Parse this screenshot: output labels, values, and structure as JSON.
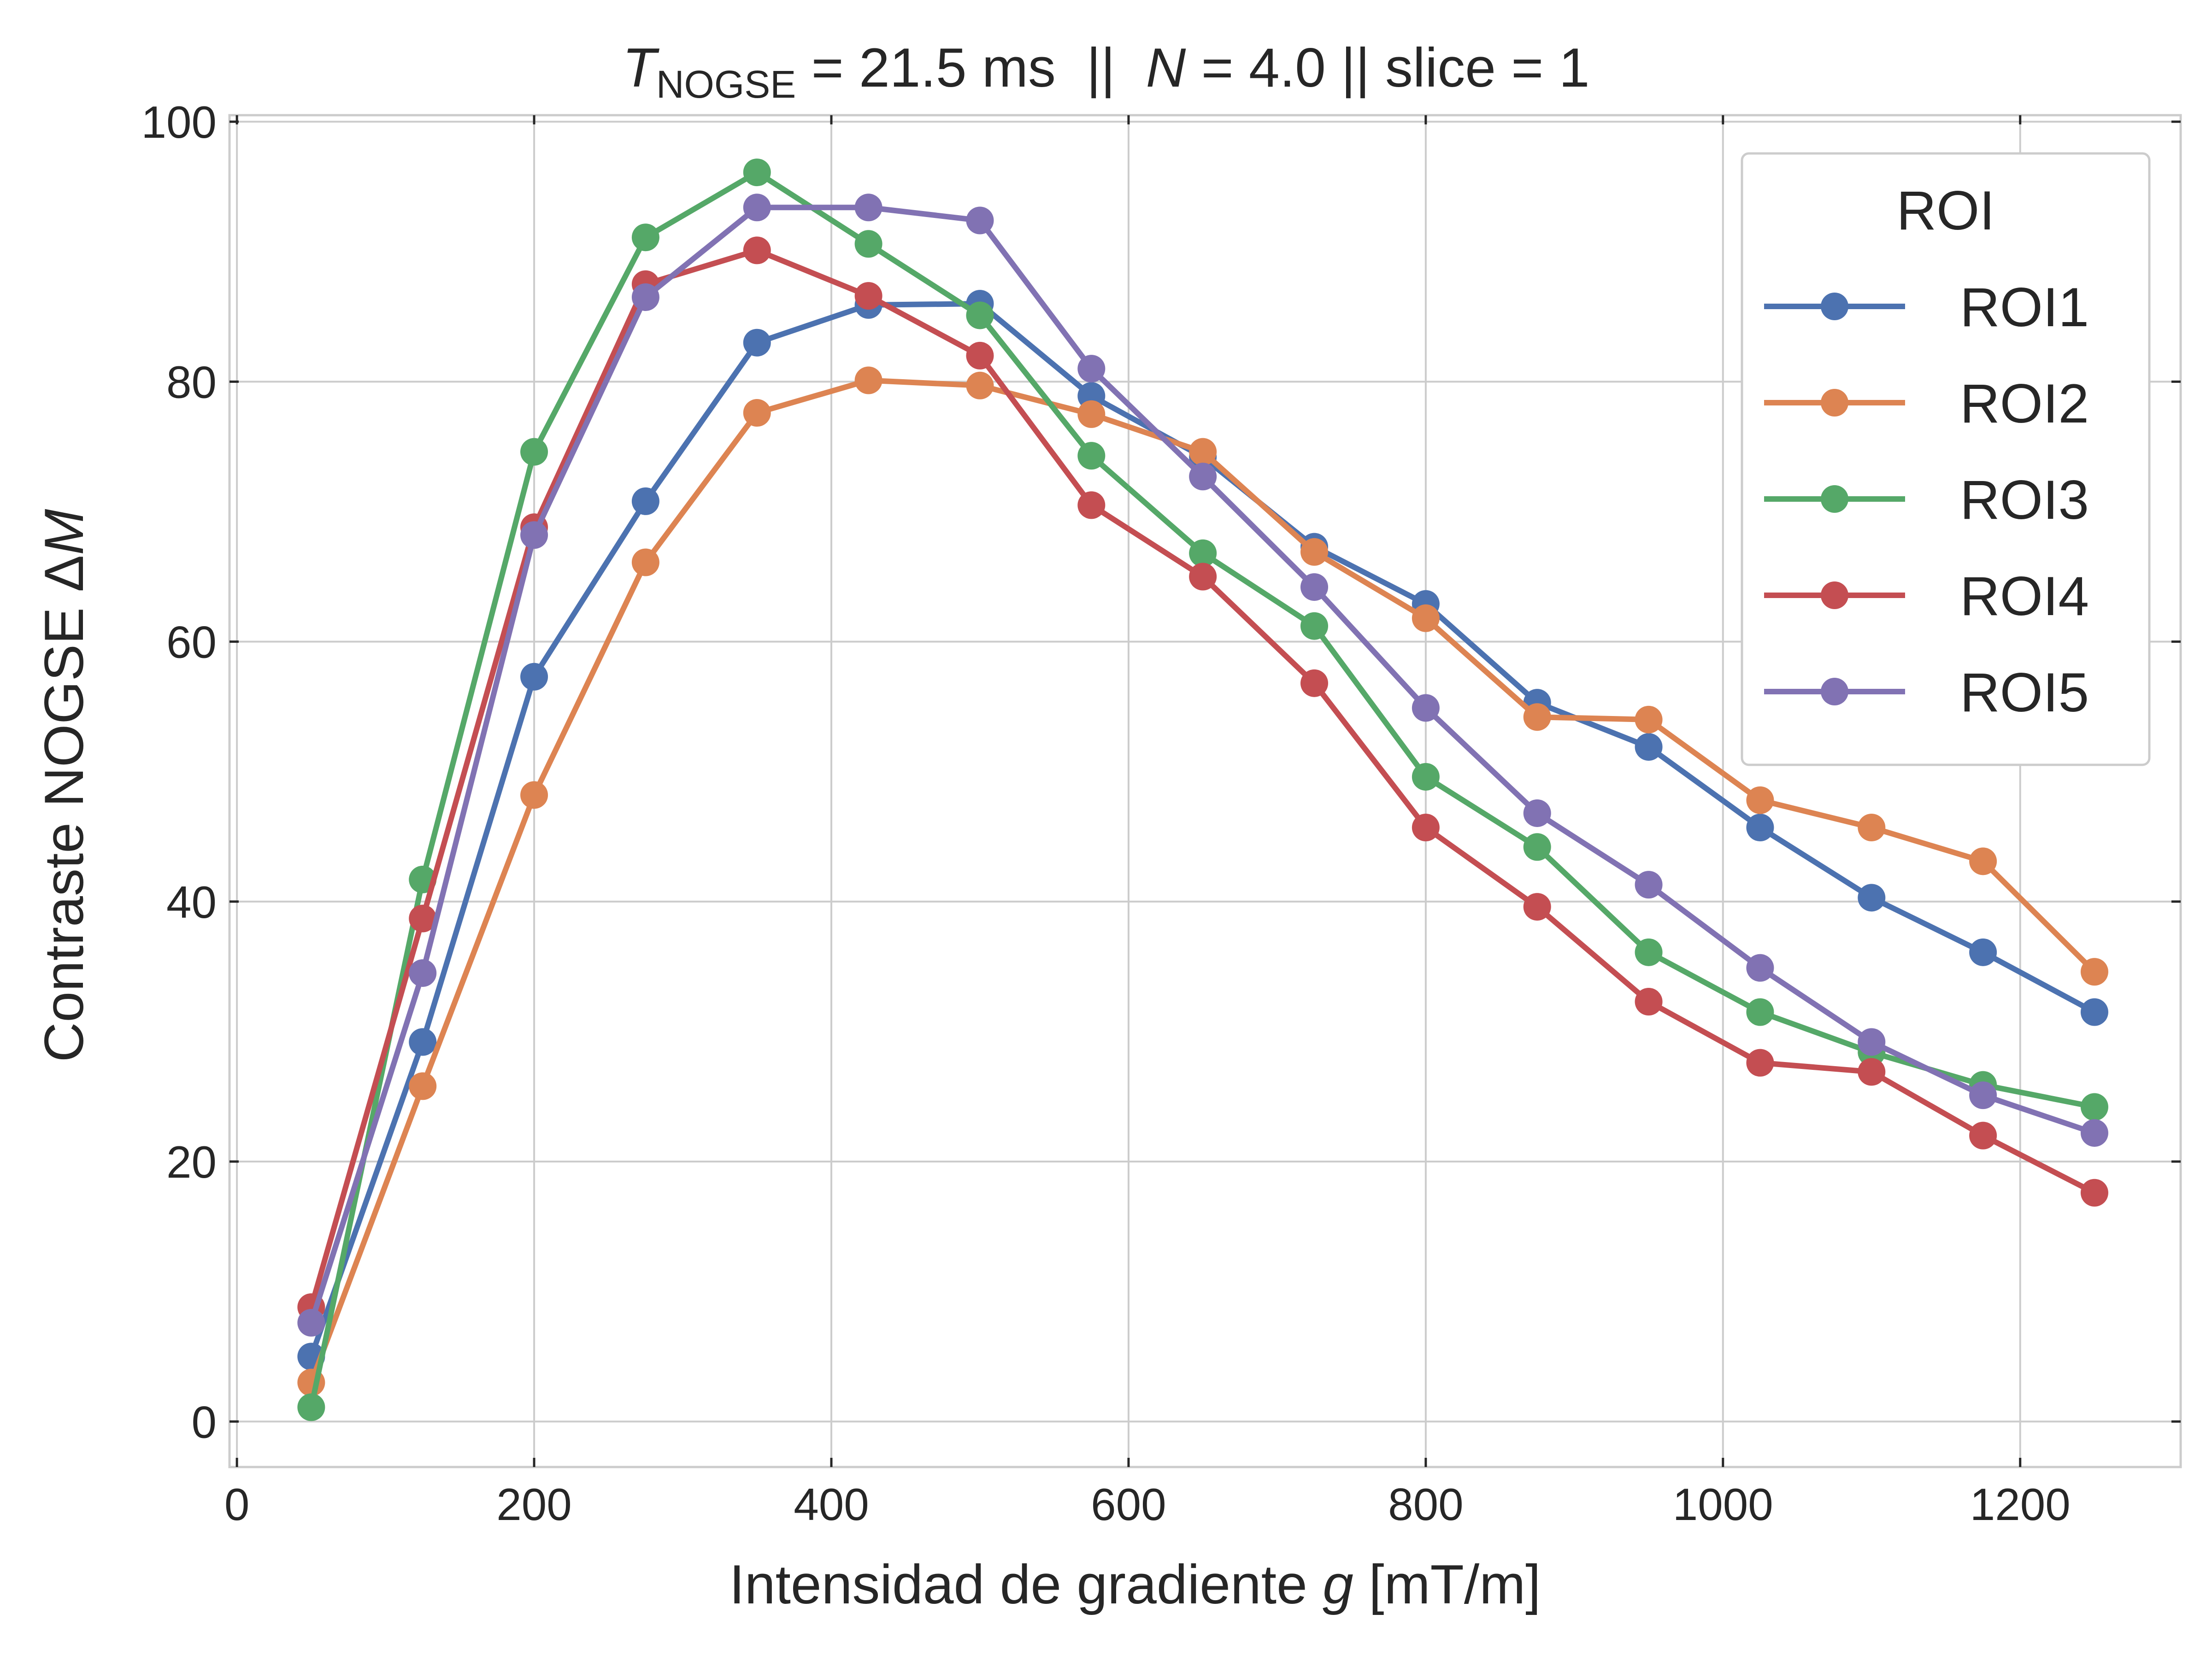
{
  "chart_data": {
    "type": "line",
    "title_parts": {
      "var_T": "T",
      "subscript": "NOGSE",
      "eq1": " = 21.5 ms  ||  ",
      "var_N": "N",
      "eq2": " = 4.0 || slice = 1"
    },
    "xlabel_parts": {
      "prefix": "Intensidad de gradiente ",
      "var": "g",
      "suffix": " [mT/m]"
    },
    "ylabel_parts": {
      "prefix": "Contraste NOGSE Δ",
      "var": "M"
    },
    "xlim": [
      -5,
      1308
    ],
    "ylim": [
      -3.5,
      100.5
    ],
    "xticks": [
      0,
      200,
      400,
      600,
      800,
      1000,
      1200
    ],
    "yticks": [
      0,
      20,
      40,
      60,
      80,
      100
    ],
    "grid": true,
    "legend": {
      "title": "ROI",
      "position": "top-right"
    },
    "x": [
      50,
      125,
      200,
      275,
      350,
      425,
      500,
      575,
      650,
      725,
      800,
      875,
      950,
      1025,
      1100,
      1175,
      1250
    ],
    "series": [
      {
        "name": "ROI1",
        "color": "#4c72b0",
        "values": [
          5.0,
          29.2,
          57.3,
          70.8,
          83.0,
          85.9,
          86.0,
          78.9,
          74.2,
          67.3,
          62.9,
          55.3,
          51.9,
          45.7,
          40.3,
          36.1,
          31.5
        ]
      },
      {
        "name": "ROI2",
        "color": "#dd8452",
        "values": [
          3.0,
          25.8,
          48.2,
          66.1,
          77.6,
          80.1,
          79.7,
          77.5,
          74.6,
          66.9,
          61.8,
          54.2,
          54.0,
          47.8,
          45.7,
          43.1,
          34.6
        ]
      },
      {
        "name": "ROI3",
        "color": "#55a868",
        "values": [
          1.1,
          41.7,
          74.6,
          91.1,
          96.1,
          90.6,
          85.1,
          74.3,
          66.8,
          61.2,
          49.6,
          44.2,
          36.1,
          31.5,
          28.4,
          25.9,
          24.2
        ]
      },
      {
        "name": "ROI4",
        "color": "#c44e52",
        "values": [
          8.8,
          38.7,
          68.8,
          87.5,
          90.1,
          86.6,
          82.0,
          70.5,
          65.0,
          56.8,
          45.7,
          39.6,
          32.3,
          27.6,
          26.9,
          22.0,
          17.6
        ]
      },
      {
        "name": "ROI5",
        "color": "#8172b3",
        "values": [
          7.6,
          34.5,
          68.2,
          86.5,
          93.4,
          93.4,
          92.4,
          81.0,
          72.7,
          64.2,
          54.9,
          46.8,
          41.3,
          34.9,
          29.2,
          25.1,
          22.2
        ]
      }
    ]
  }
}
